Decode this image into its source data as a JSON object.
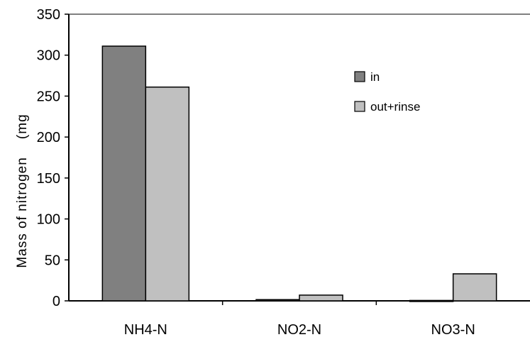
{
  "chart_data": {
    "type": "bar",
    "title": "",
    "xlabel": "",
    "ylabel": "Mass of nitrogen    (mg",
    "categories": [
      "NH4-N",
      "NO2-N",
      "NO3-N"
    ],
    "series": [
      {
        "name": "in",
        "values": [
          311,
          1.5,
          0.5
        ],
        "color": "#808080"
      },
      {
        "name": "out+rinse",
        "values": [
          261,
          7,
          33
        ],
        "color": "#c0c0c0"
      }
    ],
    "ylim": [
      0,
      350
    ],
    "yticks": [
      "0",
      "50",
      "100",
      "150",
      "200",
      "250",
      "300",
      "350"
    ],
    "grid": false,
    "legend": "right"
  }
}
